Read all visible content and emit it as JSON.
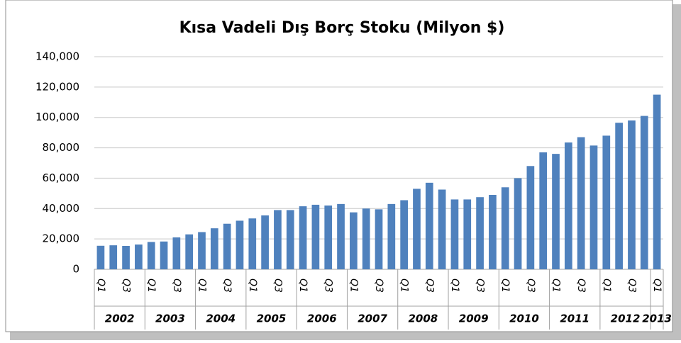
{
  "chart_data": {
    "type": "bar",
    "title": "Kısa Vadeli Dış Borç Stoku (Milyon $)",
    "categories": [
      "Q1",
      null,
      "Q3",
      null,
      "Q1",
      null,
      "Q3",
      null,
      "Q1",
      null,
      "Q3",
      null,
      "Q1",
      null,
      "Q3",
      null,
      "Q1",
      null,
      "Q3",
      null,
      "Q1",
      null,
      "Q3",
      null,
      "Q1",
      null,
      "Q3",
      null,
      "Q1",
      null,
      "Q3",
      null,
      "Q1",
      null,
      "Q3",
      null,
      "Q1",
      null,
      "Q3",
      null,
      "Q1",
      null,
      "Q3",
      null,
      "Q1"
    ],
    "years": [
      "2002",
      "2003",
      "2004",
      "2005",
      "2006",
      "2007",
      "2008",
      "2009",
      "2010",
      "2011",
      "2012",
      "2013"
    ],
    "values": [
      15500,
      15800,
      15400,
      16300,
      18000,
      18300,
      21000,
      23000,
      24500,
      27000,
      30000,
      32000,
      33500,
      35500,
      39000,
      39000,
      41500,
      42500,
      42000,
      43000,
      37500,
      40000,
      39500,
      43000,
      45500,
      53000,
      57000,
      52500,
      46000,
      46000,
      47500,
      49000,
      54000,
      60000,
      68000,
      77000,
      76000,
      83500,
      87000,
      81500,
      88000,
      96500,
      98000,
      101000,
      115000
    ],
    "color": "#4f81bd",
    "ylim": [
      0,
      140000
    ],
    "yticks": [
      0,
      {
        "value": 20000,
        "label": "20,000"
      },
      {
        "value": 40000,
        "label": "40,000"
      },
      {
        "value": 60000,
        "label": "60,000"
      },
      {
        "value": 80000,
        "label": "80,000"
      },
      {
        "value": 100000,
        "label": "100,000"
      },
      {
        "value": 120000,
        "label": "120,000"
      },
      {
        "value": 140000,
        "label": "140,000"
      }
    ],
    "grid": true
  }
}
